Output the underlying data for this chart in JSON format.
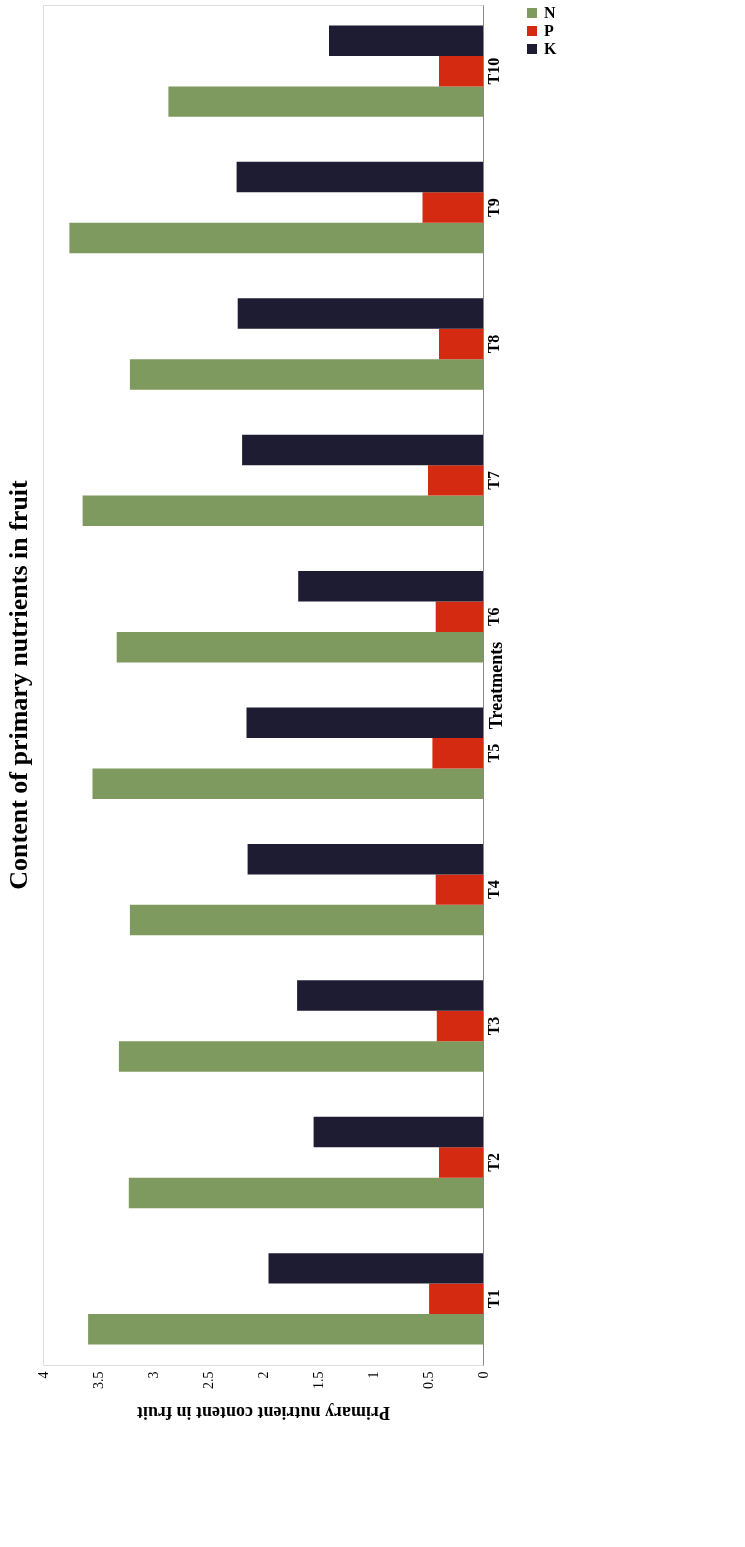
{
  "chart_data": {
    "type": "bar",
    "orientation": "horizontal",
    "title": "Content of primary nutrients in fruit",
    "xlabel": "Primary nutrient content in fruit",
    "ylabel": "Treatments",
    "categories": [
      "T10",
      "T9",
      "T8",
      "T7",
      "T6",
      "T5",
      "T4",
      "T3",
      "T2",
      "T1"
    ],
    "series": [
      {
        "name": "N",
        "color": "#7f9a5e",
        "values": [
          2.86,
          3.76,
          3.21,
          3.64,
          3.33,
          3.55,
          3.21,
          3.31,
          3.22,
          3.59
        ]
      },
      {
        "name": "P",
        "color": "#d42a12",
        "values": [
          0.4,
          0.55,
          0.4,
          0.5,
          0.43,
          0.46,
          0.43,
          0.42,
          0.4,
          0.49
        ]
      },
      {
        "name": "K",
        "color": "#1e1c33",
        "values": [
          1.4,
          2.24,
          2.23,
          2.19,
          1.68,
          2.15,
          2.14,
          1.69,
          1.54,
          1.95
        ]
      }
    ],
    "xlim": [
      4,
      0
    ],
    "xticks": [
      0,
      0.5,
      1,
      1.5,
      2,
      2.5,
      3,
      3.5,
      4
    ],
    "grid": false,
    "legend": "right"
  }
}
